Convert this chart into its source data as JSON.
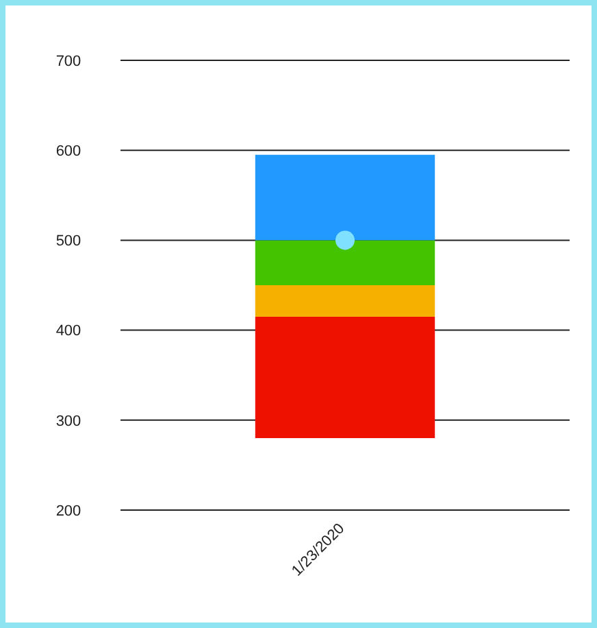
{
  "chart_data": {
    "type": "bar",
    "categories": [
      "1/23/2020"
    ],
    "series": [
      {
        "color": "#ee1100",
        "base": [
          280
        ],
        "values": [
          135
        ]
      },
      {
        "color": "#f5b000",
        "base": [
          415
        ],
        "values": [
          35
        ]
      },
      {
        "color": "#44c300",
        "base": [
          450
        ],
        "values": [
          50
        ]
      },
      {
        "color": "#2299ff",
        "base": [
          500
        ],
        "values": [
          95
        ]
      },
      {
        "type": "scatter",
        "color": "#7fe0ff",
        "x": [
          "1/23/2020"
        ],
        "values": [
          500
        ],
        "marker": "circle"
      }
    ],
    "ylim": [
      200,
      700
    ],
    "yticks": [
      200,
      300,
      400,
      500,
      600,
      700
    ],
    "grid": "y"
  }
}
